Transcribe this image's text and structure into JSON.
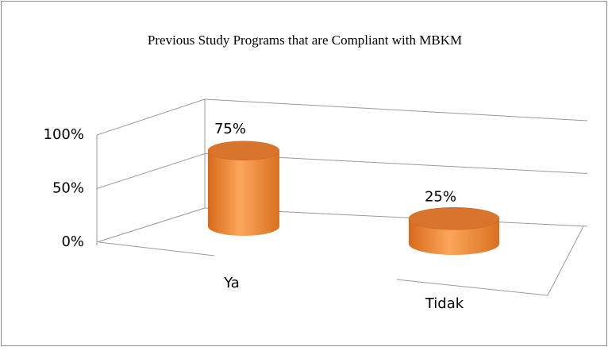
{
  "chart_data": {
    "type": "bar3d",
    "title": "Previous Study Programs that are Compliant with MBKM",
    "categories": [
      "Ya",
      "Tidak"
    ],
    "values": [
      75,
      25
    ],
    "value_labels": [
      "75%",
      "25%"
    ],
    "color": "#f08a2c",
    "ylim": [
      0,
      100
    ],
    "yticks": [
      {
        "value": 0,
        "label": "0%"
      },
      {
        "value": 50,
        "label": "50%"
      },
      {
        "value": 100,
        "label": "100%"
      }
    ],
    "grid": true
  }
}
